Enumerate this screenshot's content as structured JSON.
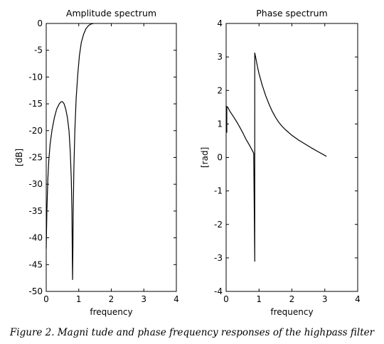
{
  "caption": "Figure 2. Magni tude and phase frequency responses of the highpass filter",
  "colors": {
    "line": "#000000",
    "axes": "#000000",
    "background": "#ffffff"
  },
  "chart_data": [
    {
      "type": "line",
      "title": "Amplitude spectrum",
      "xlabel": "frequency",
      "ylabel": "[dB]",
      "xlim": [
        0,
        4
      ],
      "ylim": [
        -50,
        0
      ],
      "grid": false,
      "xticks": [
        0,
        1,
        2,
        3,
        4
      ],
      "yticks": [
        0,
        -5,
        -10,
        -15,
        -20,
        -25,
        -30,
        -35,
        -40,
        -45,
        -50
      ],
      "series": [
        {
          "x": [
            0,
            0.02,
            0.05,
            0.08,
            0.12,
            0.18,
            0.25,
            0.32,
            0.4,
            0.46,
            0.5,
            0.55,
            0.6,
            0.65,
            0.7,
            0.74,
            0.77,
            0.79,
            0.8,
            0.81,
            0.82,
            0.83,
            0.85,
            0.88,
            0.92,
            0.97,
            1.02,
            1.08,
            1.15,
            1.22,
            1.3,
            1.38,
            1.45
          ],
          "values": [
            -42,
            -35,
            -29,
            -25.5,
            -22.5,
            -19.8,
            -17.6,
            -16,
            -15,
            -14.6,
            -14.6,
            -15,
            -16,
            -17.5,
            -20,
            -24,
            -29,
            -35,
            -42,
            -47.8,
            -42,
            -35,
            -27,
            -20,
            -14,
            -9.5,
            -6,
            -3.5,
            -2,
            -1,
            -0.4,
            -0.1,
            0
          ]
        }
      ]
    },
    {
      "type": "line",
      "title": "Phase spectrum",
      "xlabel": "frequency",
      "ylabel": "[rad]",
      "xlim": [
        0,
        4
      ],
      "ylim": [
        -4,
        4
      ],
      "grid": false,
      "xticks": [
        0,
        1,
        2,
        3,
        4
      ],
      "yticks": [
        4,
        3,
        2,
        1,
        0,
        -1,
        -2,
        -3,
        -4
      ],
      "series": [
        {
          "x": [
            0,
            0.02,
            0.02,
            0.05,
            0.1,
            0.2,
            0.3,
            0.4,
            0.5,
            0.6,
            0.7,
            0.8,
            0.84,
            0.84,
            0.87,
            0.87,
            0.9,
            0.95,
            1.0,
            1.1,
            1.2,
            1.3,
            1.4,
            1.5,
            1.6,
            1.7,
            1.8,
            2.0,
            2.2,
            2.4,
            2.6,
            2.8,
            3.0,
            3.05
          ],
          "values": [
            0.75,
            0.75,
            1.52,
            1.5,
            1.4,
            1.25,
            1.1,
            0.93,
            0.75,
            0.55,
            0.38,
            0.2,
            0.12,
            0.0,
            -3.1,
            3.12,
            2.98,
            2.72,
            2.5,
            2.15,
            1.85,
            1.6,
            1.38,
            1.2,
            1.05,
            0.93,
            0.83,
            0.66,
            0.52,
            0.4,
            0.28,
            0.17,
            0.06,
            0.03
          ]
        }
      ]
    }
  ]
}
